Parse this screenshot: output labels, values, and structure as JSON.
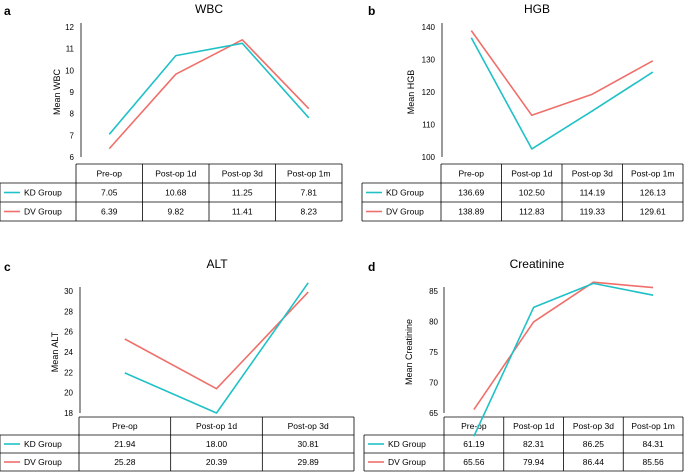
{
  "colors": {
    "kd": "#1fc1c6",
    "dv": "#ef6f6a"
  },
  "chart_data": [
    {
      "panel": "a",
      "type": "line",
      "title": "WBC",
      "ylabel": "Mean WBC",
      "categories": [
        "Pre-op",
        "Post-op 1d",
        "Post-op 3d",
        "Post-op 1m"
      ],
      "ylim": [
        6,
        12
      ],
      "yticks": [
        6,
        7,
        8,
        9,
        10,
        11,
        12
      ],
      "series": [
        {
          "name": "KD Group",
          "values": [
            7.05,
            10.68,
            11.25,
            7.81
          ],
          "labels": [
            "7.05",
            "10.68",
            "11.25",
            "7.81"
          ]
        },
        {
          "name": "DV Group",
          "values": [
            6.39,
            9.82,
            11.41,
            8.23
          ],
          "labels": [
            "6.39",
            "9.82",
            "11.41",
            "8.23"
          ]
        }
      ]
    },
    {
      "panel": "b",
      "type": "line",
      "title": "HGB",
      "ylabel": "Mean HGB",
      "categories": [
        "Pre-op",
        "Post-op 1d",
        "Post-op 3d",
        "Post-op 1m"
      ],
      "ylim": [
        100,
        140
      ],
      "yticks": [
        100,
        110,
        120,
        130,
        140
      ],
      "series": [
        {
          "name": "KD Group",
          "values": [
            136.69,
            102.5,
            114.19,
            126.13
          ],
          "labels": [
            "136.69",
            "102.50",
            "114.19",
            "126.13"
          ]
        },
        {
          "name": "DV Group",
          "values": [
            138.89,
            112.83,
            119.33,
            129.61
          ],
          "labels": [
            "138.89",
            "112.83",
            "119.33",
            "129.61"
          ]
        }
      ]
    },
    {
      "panel": "c",
      "type": "line",
      "title": "ALT",
      "ylabel": "Mean ALT",
      "categories": [
        "Pre-op",
        "Post-op 1d",
        "Post-op 3d"
      ],
      "ylim": [
        18,
        30
      ],
      "yticks": [
        18,
        20,
        22,
        24,
        26,
        28,
        30
      ],
      "series": [
        {
          "name": "KD Group",
          "values": [
            21.94,
            18.0,
            30.81
          ],
          "labels": [
            "21.94",
            "18.00",
            "30.81"
          ]
        },
        {
          "name": "DV Group",
          "values": [
            25.28,
            20.39,
            29.89
          ],
          "labels": [
            "25.28",
            "20.39",
            "29.89"
          ]
        }
      ]
    },
    {
      "panel": "d",
      "type": "line",
      "title": "Creatinine",
      "ylabel": "Mean Creatinine",
      "categories": [
        "Pre-op",
        "Post-op 1d",
        "Post-op 3d",
        "Post-op 1m"
      ],
      "ylim": [
        65,
        85
      ],
      "yticks": [
        65,
        70,
        75,
        80,
        85
      ],
      "series": [
        {
          "name": "KD Group",
          "values": [
            61.19,
            82.31,
            86.25,
            84.31
          ],
          "labels": [
            "61.19",
            "82.31",
            "86.25",
            "84.31"
          ]
        },
        {
          "name": "DV Group",
          "values": [
            65.56,
            79.94,
            86.44,
            85.56
          ],
          "labels": [
            "65.56",
            "79.94",
            "86.44",
            "85.56"
          ]
        }
      ]
    }
  ]
}
